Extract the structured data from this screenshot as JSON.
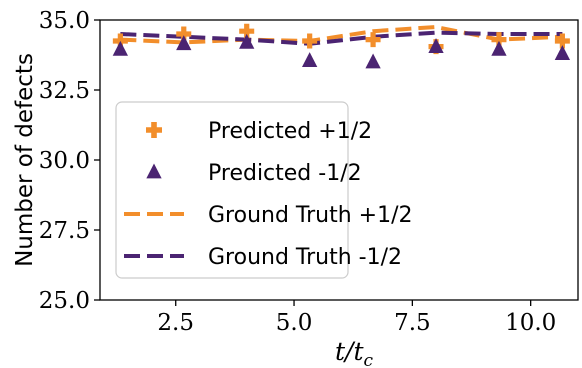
{
  "chart_data": {
    "type": "line",
    "xlabel": "t/t_c",
    "ylabel": "Number of defects",
    "xlim": [
      0.9,
      11.0
    ],
    "ylim": [
      25.0,
      35.0
    ],
    "xticks": [
      "2.5",
      "5.0",
      "7.5",
      "10.0"
    ],
    "yticks": [
      "25.0",
      "27.5",
      "30.0",
      "32.5",
      "35.0"
    ],
    "x": [
      1.33,
      2.67,
      4.0,
      5.33,
      6.67,
      8.0,
      9.33,
      10.67
    ],
    "series": [
      {
        "name": "Ground Truth +1/2",
        "style": "dashed",
        "color": "#F28E2B",
        "values": [
          34.3,
          34.2,
          34.3,
          34.25,
          34.6,
          34.75,
          34.3,
          34.4
        ]
      },
      {
        "name": "Ground Truth -1/2",
        "style": "dashed",
        "color": "#4B2472",
        "values": [
          34.5,
          34.4,
          34.3,
          34.15,
          34.4,
          34.55,
          34.5,
          34.5
        ]
      },
      {
        "name": "Predicted +1/2",
        "style": "plus",
        "color": "#F28E2B",
        "values": [
          34.25,
          34.5,
          34.6,
          34.25,
          34.3,
          34.05,
          34.3,
          34.25
        ]
      },
      {
        "name": "Predicted -1/2",
        "style": "triangle",
        "color": "#4B2472",
        "values": [
          33.95,
          34.15,
          34.2,
          33.55,
          33.5,
          34.05,
          33.95,
          33.8
        ]
      }
    ],
    "legend": {
      "placement": "lower-left",
      "order": [
        "Predicted +1/2",
        "Predicted -1/2",
        "Ground Truth +1/2",
        "Ground Truth -1/2"
      ]
    },
    "grid": false
  }
}
